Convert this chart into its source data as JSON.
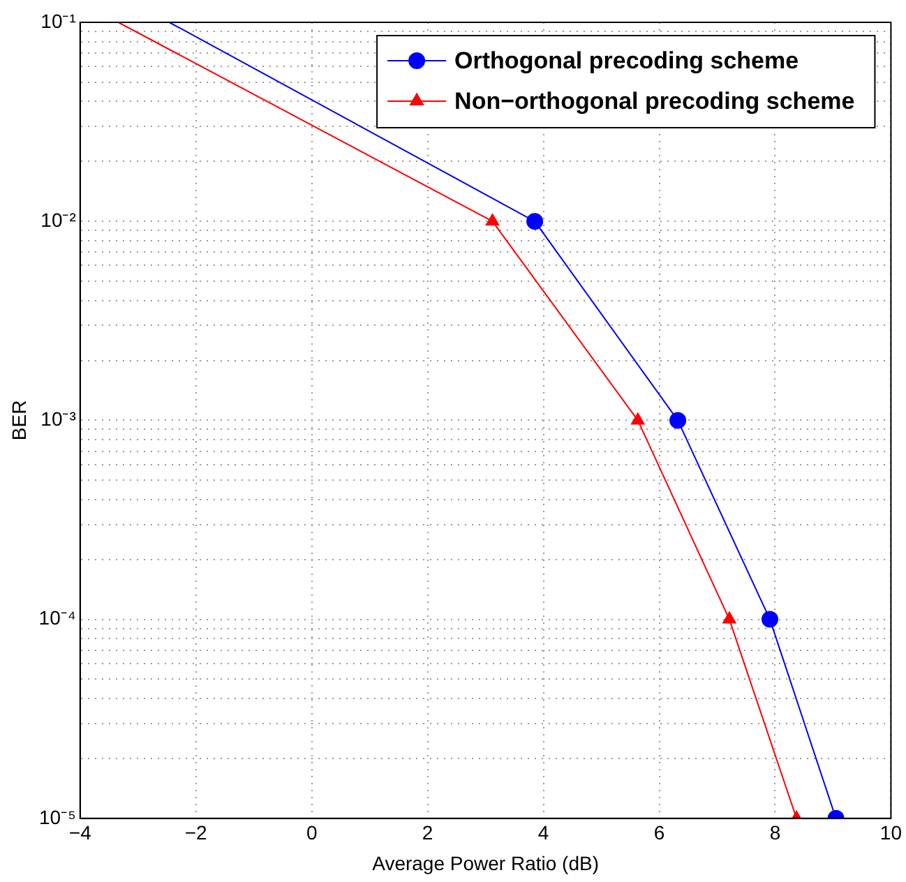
{
  "chart_data": {
    "type": "line",
    "xlabel": "Average Power Ratio (dB)",
    "ylabel": "BER",
    "log": "y",
    "grid": true,
    "legend": "top right",
    "line_style": "solid",
    "xlim": [
      -4,
      10
    ],
    "xticks": [
      {
        "value": -4,
        "label": "−4"
      },
      {
        "value": -2,
        "label": "−2"
      },
      0,
      2,
      4,
      6,
      8,
      10
    ],
    "ylim": [
      1e-05,
      0.1
    ],
    "yticks": [
      {
        "value": 1e-05,
        "label": "10⁻⁵"
      },
      {
        "value": 2e-05,
        "label": null
      },
      {
        "value": 3e-05,
        "label": null
      },
      {
        "value": 4e-05,
        "label": null
      },
      {
        "value": 5e-05,
        "label": null
      },
      {
        "value": 6e-05,
        "label": null
      },
      {
        "value": 7e-05,
        "label": null
      },
      {
        "value": 8e-05,
        "label": null
      },
      {
        "value": 9e-05,
        "label": null
      },
      {
        "value": 0.0001,
        "label": "10⁻⁴"
      },
      {
        "value": 0.0002,
        "label": null
      },
      {
        "value": 0.0003,
        "label": null
      },
      {
        "value": 0.0004,
        "label": null
      },
      {
        "value": 0.0005,
        "label": null
      },
      {
        "value": 0.0006,
        "label": null
      },
      {
        "value": 0.0007,
        "label": null
      },
      {
        "value": 0.0008,
        "label": null
      },
      {
        "value": 0.0009,
        "label": null
      },
      {
        "value": 0.001,
        "label": "10⁻³"
      },
      {
        "value": 0.002,
        "label": null
      },
      {
        "value": 0.003,
        "label": null
      },
      {
        "value": 0.004,
        "label": null
      },
      {
        "value": 0.005,
        "label": null
      },
      {
        "value": 0.006,
        "label": null
      },
      {
        "value": 0.007,
        "label": null
      },
      {
        "value": 0.008,
        "label": null
      },
      {
        "value": 0.009,
        "label": null
      },
      {
        "value": 0.01,
        "label": "10⁻²"
      },
      {
        "value": 0.02,
        "label": null
      },
      {
        "value": 0.03,
        "label": null
      },
      {
        "value": 0.04,
        "label": null
      },
      {
        "value": 0.05,
        "label": null
      },
      {
        "value": 0.06,
        "label": null
      },
      {
        "value": 0.07,
        "label": null
      },
      {
        "value": 0.08,
        "label": null
      },
      {
        "value": 0.09,
        "label": null
      },
      {
        "value": 0.1,
        "label": "10⁻¹"
      }
    ],
    "series": [
      {
        "name": "Orthogonal precoding scheme",
        "color": "#0000ff",
        "marker": "circle",
        "x": [
          -2.46,
          3.85,
          6.32,
          7.91,
          9.05
        ],
        "values": [
          0.1,
          0.01,
          0.001,
          0.0001,
          1e-05
        ]
      },
      {
        "name": "Non−orthogonal precoding scheme",
        "color": "#ff0000",
        "marker": "triangle",
        "x": [
          -3.34,
          3.12,
          5.63,
          7.21,
          8.37
        ],
        "values": [
          0.1,
          0.01,
          0.001,
          0.0001,
          1e-05
        ]
      }
    ]
  }
}
